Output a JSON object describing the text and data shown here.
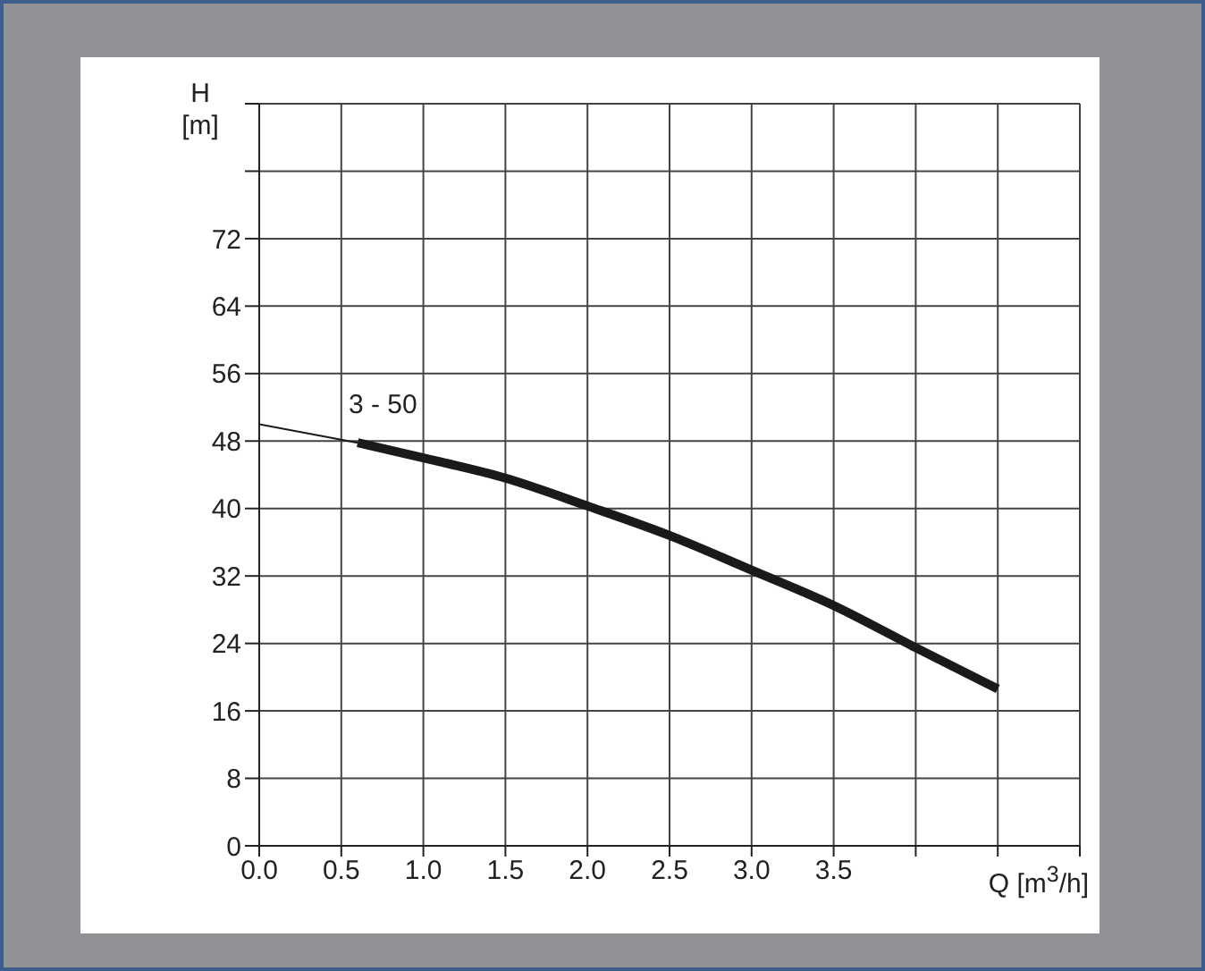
{
  "chart_data": {
    "type": "line",
    "xlabel": "Q [m$^{3}$/h]",
    "ylabel": "H [m]",
    "series": [
      {
        "color": "#1a1a1a",
        "x": [
          0,
          0.6
        ],
        "values": [
          50,
          47.8
        ]
      },
      {
        "color": "#1a1a1a",
        "x": [
          0.6,
          1.0,
          1.5,
          2.0,
          2.5,
          3.0,
          3.5,
          4.0,
          4.5
        ],
        "values": [
          47.8,
          46,
          43.6,
          40.3,
          36.8,
          32.7,
          28.5,
          23.5,
          18.6
        ]
      }
    ],
    "xlim": [
      0,
      5
    ],
    "ylim": [
      0,
      88
    ],
    "xticks": [
      {
        "value": 0,
        "label": "0.0"
      },
      {
        "value": 0.5,
        "label": "0.5"
      },
      {
        "value": 1,
        "label": "1.0"
      },
      {
        "value": 1.5,
        "label": "1.5"
      },
      {
        "value": 2,
        "label": "2.0"
      },
      {
        "value": 2.5,
        "label": "2.5"
      },
      {
        "value": 3,
        "label": "3.0"
      },
      {
        "value": 3.5,
        "label": "3.5"
      },
      {
        "value": 4,
        "label": null
      },
      {
        "value": 4.5,
        "label": null
      },
      {
        "value": 5,
        "label": null
      }
    ],
    "yticks": [
      0,
      8,
      16,
      24,
      32,
      40,
      48,
      56,
      64,
      72,
      {
        "value": 80,
        "label": null
      },
      {
        "value": 88,
        "label": null
      }
    ],
    "annotations": [
      "3 - 50"
    ],
    "grid": true,
    "marker": "none",
    "line_style": "solid"
  }
}
